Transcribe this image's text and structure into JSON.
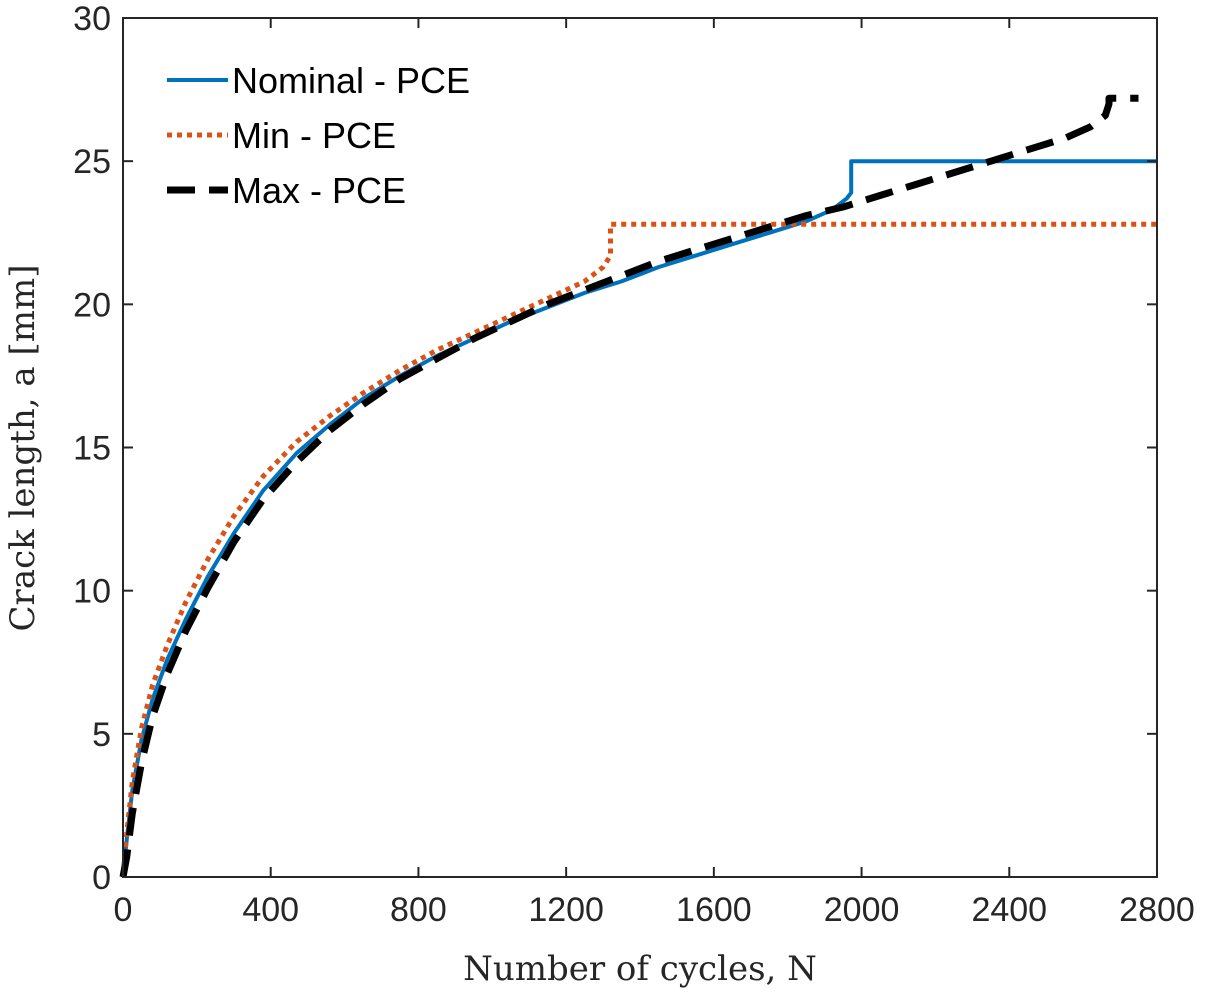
{
  "chart_data": {
    "type": "line",
    "title": "",
    "xlabel": "Number of cycles, N",
    "ylabel": "Crack length, a [mm]",
    "xlim": [
      0,
      2800
    ],
    "ylim": [
      0,
      30
    ],
    "xticks": [
      0,
      400,
      800,
      1200,
      1600,
      2000,
      2400,
      2800
    ],
    "yticks": [
      0,
      5,
      10,
      15,
      20,
      25,
      30
    ],
    "legend_position": "top-left",
    "grid": false,
    "series": [
      {
        "name": "Nominal - PCE",
        "color": "#0072BD",
        "style": "solid",
        "x": [
          0,
          10,
          25,
          50,
          80,
          120,
          170,
          230,
          300,
          380,
          470,
          560,
          650,
          750,
          850,
          950,
          1050,
          1150,
          1250,
          1350,
          1450,
          1550,
          1650,
          1750,
          1850,
          1920,
          1960,
          1972,
          1972,
          2800
        ],
        "y": [
          0,
          1.3,
          3.0,
          4.8,
          6.2,
          7.6,
          9.0,
          10.5,
          12.0,
          13.5,
          14.8,
          15.8,
          16.7,
          17.5,
          18.2,
          18.8,
          19.4,
          19.9,
          20.4,
          20.8,
          21.3,
          21.7,
          22.1,
          22.5,
          22.9,
          23.3,
          23.7,
          23.9,
          25.0,
          25.0
        ]
      },
      {
        "name": "Min - PCE",
        "color": "#D95319",
        "style": "dotted",
        "x": [
          0,
          10,
          25,
          50,
          80,
          120,
          170,
          230,
          300,
          380,
          470,
          560,
          650,
          750,
          850,
          950,
          1050,
          1150,
          1250,
          1300,
          1320,
          1320,
          2800
        ],
        "y": [
          0,
          1.5,
          3.3,
          5.2,
          6.7,
          8.1,
          9.6,
          11.1,
          12.6,
          14.0,
          15.2,
          16.1,
          16.9,
          17.7,
          18.4,
          19.0,
          19.6,
          20.2,
          20.8,
          21.3,
          21.7,
          22.8,
          22.8
        ]
      },
      {
        "name": "Max - PCE",
        "color": "#000000",
        "style": "dashed",
        "x": [
          0,
          10,
          25,
          50,
          80,
          120,
          170,
          230,
          300,
          380,
          470,
          560,
          650,
          750,
          850,
          950,
          1050,
          1150,
          1250,
          1350,
          1450,
          1550,
          1650,
          1750,
          1850,
          1950,
          2050,
          2150,
          2250,
          2350,
          2450,
          2550,
          2620,
          2660,
          2670,
          2670,
          2750
        ],
        "y": [
          0,
          0.7,
          2.2,
          4.0,
          5.6,
          7.1,
          8.6,
          10.1,
          11.7,
          13.2,
          14.5,
          15.6,
          16.5,
          17.4,
          18.1,
          18.8,
          19.4,
          20.0,
          20.5,
          21.0,
          21.5,
          21.9,
          22.3,
          22.7,
          23.1,
          23.4,
          23.8,
          24.2,
          24.6,
          25.0,
          25.4,
          25.8,
          26.2,
          26.6,
          27.0,
          27.2,
          27.2
        ]
      }
    ]
  }
}
